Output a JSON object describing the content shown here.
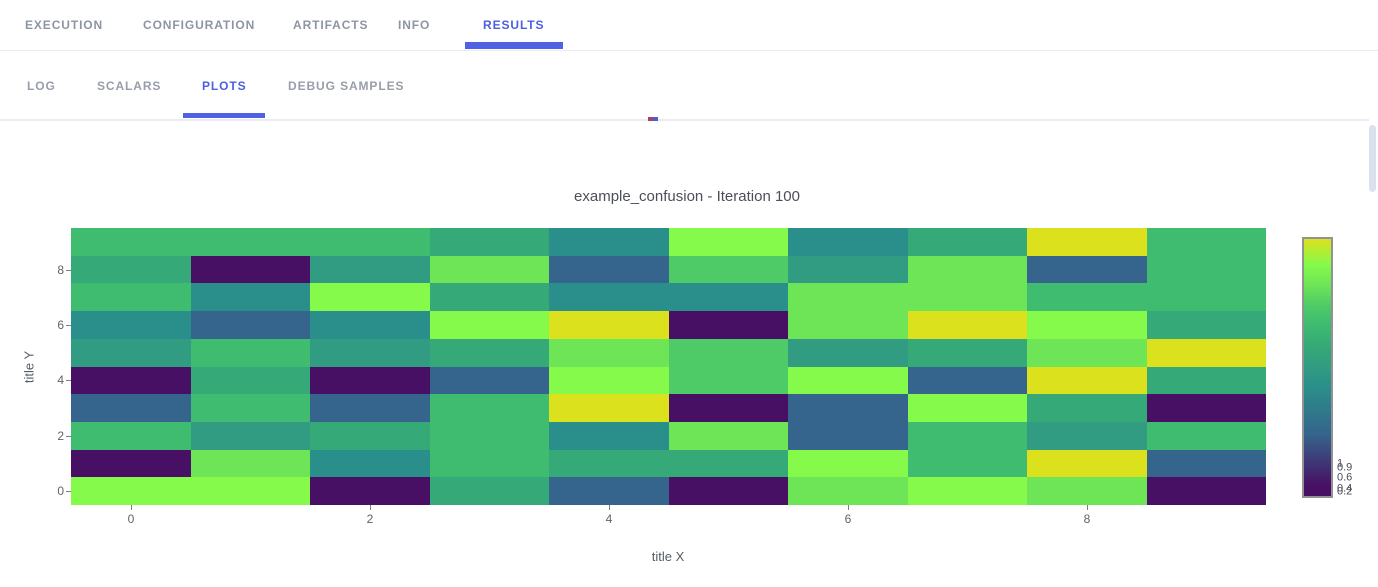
{
  "accent_color": "#4f62e4",
  "tabs_primary": {
    "items": [
      {
        "label": "EXECUTION",
        "active": false
      },
      {
        "label": "CONFIGURATION",
        "active": false
      },
      {
        "label": "ARTIFACTS",
        "active": false
      },
      {
        "label": "INFO",
        "active": false
      },
      {
        "label": "RESULTS",
        "active": true
      }
    ]
  },
  "tabs_secondary": {
    "items": [
      {
        "label": "LOG",
        "active": false
      },
      {
        "label": "SCALARS",
        "active": false
      },
      {
        "label": "PLOTS",
        "active": true
      },
      {
        "label": "DEBUG SAMPLES",
        "active": false
      }
    ]
  },
  "chart_data": {
    "type": "heatmap",
    "title": "example_confusion - Iteration 100",
    "xlabel": "title X",
    "ylabel": "title Y",
    "x_tick_labels": [
      "0",
      "2",
      "4",
      "6",
      "8"
    ],
    "y_tick_labels": [
      "8",
      "6",
      "4",
      "2",
      "0"
    ],
    "x_range": [
      0,
      9
    ],
    "y_range": [
      0,
      9
    ],
    "grid": false,
    "legend_position": "right-colorbar",
    "colorbar_tick_labels": [
      "1",
      "0.9",
      "0.6",
      "0.4",
      "0.2"
    ],
    "colorscale_name": "viridis",
    "palette": [
      "#471064",
      "#35648c",
      "#2a8e8a",
      "#319c82",
      "#35a977",
      "#3fbc70",
      "#4ecb66",
      "#6ee457",
      "#85fa4a",
      "#dce11e"
    ],
    "y_categories_top_to_bottom": [
      9,
      8,
      7,
      6,
      5,
      4,
      3,
      2,
      1,
      0
    ],
    "x_categories": [
      0,
      1,
      2,
      3,
      4,
      5,
      6,
      7,
      8,
      9
    ],
    "level_matrix_top_to_bottom": [
      [
        5,
        5,
        5,
        4,
        2,
        8,
        2,
        4,
        9,
        5
      ],
      [
        4,
        0,
        3,
        7,
        1,
        6,
        3,
        7,
        1,
        5
      ],
      [
        5,
        2,
        8,
        4,
        2,
        2,
        7,
        7,
        5,
        5
      ],
      [
        2,
        1,
        2,
        8,
        9,
        0,
        7,
        9,
        8,
        4
      ],
      [
        3,
        5,
        3,
        4,
        7,
        6,
        3,
        4,
        7,
        9
      ],
      [
        0,
        4,
        0,
        1,
        8,
        6,
        8,
        1,
        9,
        4
      ],
      [
        1,
        5,
        1,
        5,
        9,
        0,
        1,
        8,
        4,
        0
      ],
      [
        5,
        3,
        4,
        5,
        2,
        7,
        1,
        5,
        3,
        5
      ],
      [
        0,
        7,
        2,
        5,
        4,
        4,
        8,
        5,
        9,
        1
      ],
      [
        8,
        8,
        0,
        4,
        1,
        0,
        7,
        8,
        7,
        0
      ]
    ],
    "values_top_to_bottom": [
      [
        0.63,
        0.63,
        0.63,
        0.55,
        0.4,
        0.87,
        0.4,
        0.55,
        0.97,
        0.63
      ],
      [
        0.55,
        0.05,
        0.48,
        0.78,
        0.25,
        0.7,
        0.48,
        0.78,
        0.25,
        0.63
      ],
      [
        0.63,
        0.4,
        0.87,
        0.55,
        0.4,
        0.4,
        0.78,
        0.78,
        0.63,
        0.63
      ],
      [
        0.4,
        0.25,
        0.4,
        0.87,
        0.97,
        0.05,
        0.78,
        0.97,
        0.87,
        0.55
      ],
      [
        0.48,
        0.63,
        0.48,
        0.55,
        0.78,
        0.7,
        0.48,
        0.55,
        0.78,
        0.97
      ],
      [
        0.05,
        0.55,
        0.05,
        0.25,
        0.87,
        0.7,
        0.87,
        0.25,
        0.97,
        0.55
      ],
      [
        0.25,
        0.63,
        0.25,
        0.63,
        0.97,
        0.05,
        0.25,
        0.87,
        0.55,
        0.05
      ],
      [
        0.63,
        0.48,
        0.55,
        0.63,
        0.4,
        0.78,
        0.25,
        0.63,
        0.48,
        0.63
      ],
      [
        0.05,
        0.78,
        0.4,
        0.63,
        0.55,
        0.55,
        0.87,
        0.63,
        0.97,
        0.25
      ],
      [
        0.87,
        0.87,
        0.05,
        0.55,
        0.25,
        0.05,
        0.78,
        0.87,
        0.78,
        0.05
      ]
    ]
  }
}
